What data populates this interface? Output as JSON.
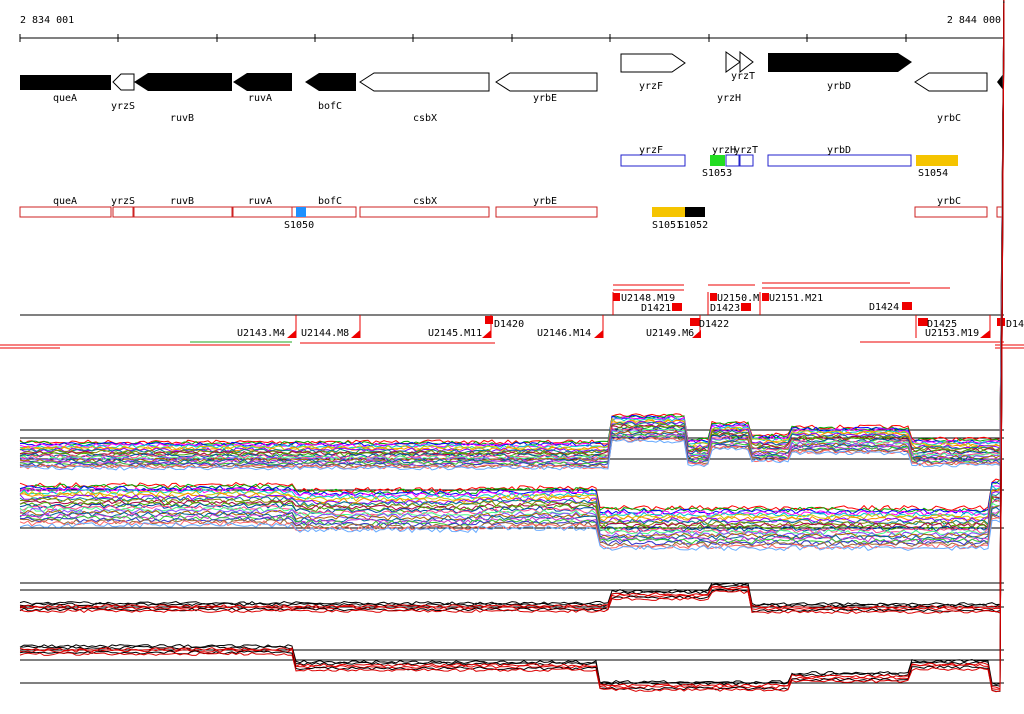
{
  "coords": {
    "start": "2 834 001",
    "end": "2 844 000"
  },
  "colors": {
    "gene_fill": "#000000",
    "annot_border": "#2222cc",
    "orf_border": "#cc2222",
    "feature_yellow": "#f5c400",
    "feature_green": "#22dd22",
    "feature_blue": "#1e90ff",
    "marker_red": "#ee0000",
    "profile_black": "#000000",
    "profile_red": "#dd0000"
  },
  "genes": [
    {
      "id": "queA",
      "label": "queA",
      "strand": "-",
      "filled": true
    },
    {
      "id": "yrzS",
      "label": "yrzS",
      "strand": "-",
      "filled": false
    },
    {
      "id": "ruvB",
      "label": "ruvB",
      "strand": "-",
      "filled": true
    },
    {
      "id": "ruvA",
      "label": "ruvA",
      "strand": "-",
      "filled": true
    },
    {
      "id": "bofC",
      "label": "bofC",
      "strand": "-",
      "filled": true
    },
    {
      "id": "csbX",
      "label": "csbX",
      "strand": "-",
      "filled": false
    },
    {
      "id": "yrbE",
      "label": "yrbE",
      "strand": "-",
      "filled": false
    },
    {
      "id": "yrzF",
      "label": "yrzF",
      "strand": "+",
      "filled": false
    },
    {
      "id": "yrzH",
      "label": "yrzH",
      "strand": "+",
      "filled": false
    },
    {
      "id": "yrzT",
      "label": "yrzT",
      "strand": "+",
      "filled": false
    },
    {
      "id": "yrbD",
      "label": "yrbD",
      "strand": "+",
      "filled": true
    },
    {
      "id": "yrbC",
      "label": "yrbC",
      "strand": "-",
      "filled": false
    }
  ],
  "annot_plus": [
    {
      "label": "yrzF"
    },
    {
      "label": "yrzH"
    },
    {
      "label": "yrzT"
    },
    {
      "label": "yrbD"
    }
  ],
  "annot_minus": [
    {
      "label": "queA"
    },
    {
      "label": "yrzS"
    },
    {
      "label": "ruvB"
    },
    {
      "label": "ruvA"
    },
    {
      "label": "bofC"
    },
    {
      "label": "csbX"
    },
    {
      "label": "yrbE"
    },
    {
      "label": "yrbC"
    }
  ],
  "features": [
    {
      "label": "S1050",
      "color": "blue"
    },
    {
      "label": "S1051",
      "color": "yellow"
    },
    {
      "label": "S1052",
      "color": "black"
    },
    {
      "label": "S1053",
      "color": "green"
    },
    {
      "label": "S1054",
      "color": "yellow"
    }
  ],
  "segments_upper": [
    {
      "label": "U2148.M19"
    },
    {
      "label": "D1421"
    },
    {
      "label": "U2150.M"
    },
    {
      "label": "U2151.M21"
    },
    {
      "label": "D1423"
    },
    {
      "label": "D1424"
    }
  ],
  "segments_lower": [
    {
      "label": "U2143.M4"
    },
    {
      "label": "U2144.M8"
    },
    {
      "label": "U2145.M11"
    },
    {
      "label": "D1420"
    },
    {
      "label": "U2146.M14"
    },
    {
      "label": "U2149.M6"
    },
    {
      "label": "D1422"
    },
    {
      "label": "D1425"
    },
    {
      "label": "U2153.M19"
    },
    {
      "label": "D14"
    }
  ]
}
